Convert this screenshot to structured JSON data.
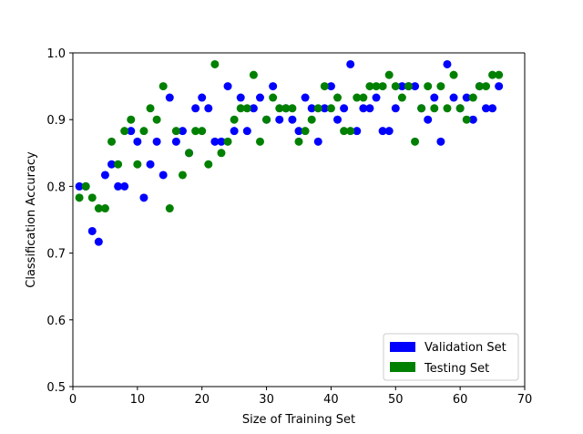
{
  "chart_data": {
    "type": "scatter",
    "xlabel": "Size of Training Set",
    "ylabel": "Classification Accuracy",
    "xlim": [
      0,
      70
    ],
    "ylim": [
      0.5,
      1.0
    ],
    "x_ticks": [
      0,
      10,
      20,
      30,
      40,
      50,
      60,
      70
    ],
    "x_tick_labels": [
      "0",
      "10",
      "20",
      "30",
      "40",
      "50",
      "60",
      "70"
    ],
    "y_ticks": [
      0.5,
      0.6,
      0.7,
      0.8,
      0.9,
      1.0
    ],
    "y_tick_labels": [
      "0.5",
      "0.6",
      "0.7",
      "0.8",
      "0.9",
      "1.0"
    ],
    "grid": false,
    "legend_position": "lower-right",
    "series": [
      {
        "name": "Validation Set",
        "color": "#0000ff",
        "x": [
          1,
          2,
          3,
          4,
          5,
          6,
          7,
          8,
          9,
          10,
          11,
          12,
          13,
          14,
          15,
          16,
          17,
          18,
          19,
          20,
          21,
          22,
          23,
          24,
          25,
          26,
          27,
          28,
          29,
          30,
          31,
          32,
          33,
          34,
          35,
          36,
          37,
          38,
          39,
          40,
          41,
          42,
          43,
          44,
          45,
          46,
          47,
          48,
          49,
          50,
          51,
          52,
          53,
          54,
          55,
          56,
          57,
          58,
          59,
          60,
          61,
          62,
          63,
          64,
          65,
          66
        ],
        "y": [
          0.8,
          0.8,
          0.733,
          0.717,
          0.817,
          0.833,
          0.8,
          0.8,
          0.883,
          0.867,
          0.783,
          0.833,
          0.867,
          0.817,
          0.933,
          0.867,
          0.883,
          0.85,
          0.917,
          0.933,
          0.917,
          0.867,
          0.867,
          0.95,
          0.883,
          0.933,
          0.883,
          0.917,
          0.933,
          0.9,
          0.95,
          0.9,
          0.917,
          0.9,
          0.883,
          0.933,
          0.917,
          0.867,
          0.917,
          0.95,
          0.9,
          0.917,
          0.983,
          0.883,
          0.917,
          0.917,
          0.933,
          0.883,
          0.883,
          0.917,
          0.95,
          0.95,
          0.95,
          0.917,
          0.9,
          0.933,
          0.867,
          0.983,
          0.933,
          0.917,
          0.933,
          0.9,
          0.95,
          0.917,
          0.917,
          0.95
        ]
      },
      {
        "name": "Testing Set",
        "color": "#008000",
        "x": [
          1,
          2,
          3,
          4,
          5,
          6,
          7,
          8,
          9,
          10,
          11,
          12,
          13,
          14,
          15,
          16,
          17,
          18,
          19,
          20,
          21,
          22,
          23,
          24,
          25,
          26,
          27,
          28,
          29,
          30,
          31,
          32,
          33,
          34,
          35,
          36,
          37,
          38,
          39,
          40,
          41,
          42,
          43,
          44,
          45,
          46,
          47,
          48,
          49,
          50,
          51,
          52,
          53,
          54,
          55,
          56,
          57,
          58,
          59,
          60,
          61,
          62,
          63,
          64,
          65,
          66
        ],
        "y": [
          0.783,
          0.8,
          0.783,
          0.767,
          0.767,
          0.867,
          0.833,
          0.883,
          0.9,
          0.833,
          0.883,
          0.917,
          0.9,
          0.95,
          0.767,
          0.883,
          0.817,
          0.85,
          0.883,
          0.883,
          0.833,
          0.983,
          0.85,
          0.867,
          0.9,
          0.917,
          0.917,
          0.967,
          0.867,
          0.9,
          0.933,
          0.917,
          0.917,
          0.917,
          0.867,
          0.883,
          0.9,
          0.917,
          0.95,
          0.917,
          0.933,
          0.883,
          0.883,
          0.933,
          0.933,
          0.95,
          0.95,
          0.95,
          0.967,
          0.95,
          0.933,
          0.95,
          0.867,
          0.917,
          0.95,
          0.917,
          0.95,
          0.917,
          0.967,
          0.917,
          0.9,
          0.933,
          0.95,
          0.95,
          0.967,
          0.967
        ]
      }
    ]
  }
}
